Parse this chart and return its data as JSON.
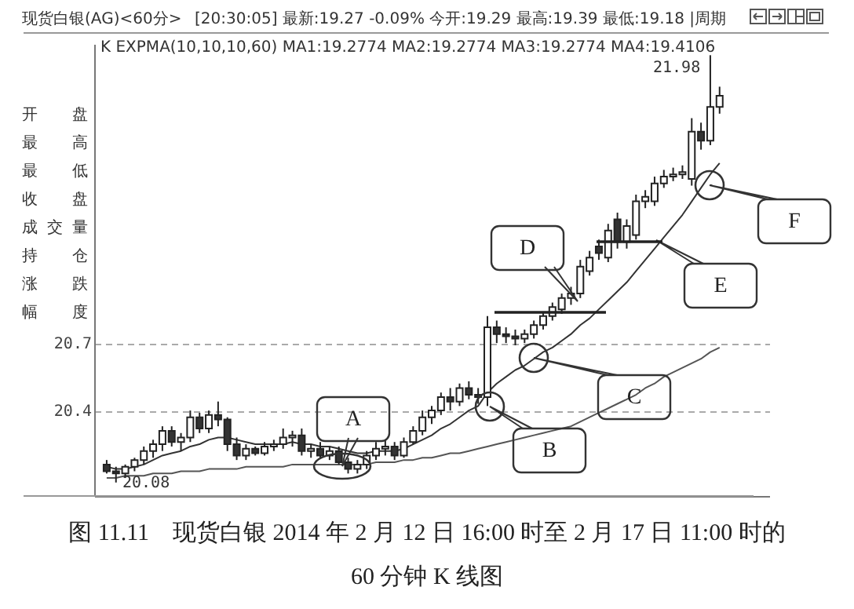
{
  "chart_data": {
    "type": "candlestick",
    "title": "现货白银(AG)<60分>",
    "categories": [
      null,
      null,
      null,
      null,
      null,
      null,
      null,
      null,
      null,
      null,
      null,
      null,
      null,
      null,
      null,
      null,
      null,
      null,
      null,
      null,
      null,
      null,
      null,
      null,
      null,
      null,
      null,
      null,
      null,
      null,
      null,
      null,
      null,
      null,
      null,
      null,
      null,
      null,
      null,
      null,
      null,
      null,
      null,
      null,
      null,
      null,
      null,
      null,
      null,
      null,
      null,
      null,
      null,
      null,
      null,
      null,
      null,
      null,
      null,
      null,
      null,
      null,
      null,
      null,
      null,
      null,
      null
    ],
    "ohlc": [
      [
        20.16,
        20.18,
        20.12,
        20.13
      ],
      [
        20.13,
        20.15,
        20.08,
        20.12
      ],
      [
        20.12,
        20.16,
        20.1,
        20.15
      ],
      [
        20.15,
        20.19,
        20.13,
        20.18
      ],
      [
        20.18,
        20.24,
        20.16,
        20.22
      ],
      [
        20.22,
        20.27,
        20.19,
        20.25
      ],
      [
        20.25,
        20.33,
        20.22,
        20.31
      ],
      [
        20.31,
        20.33,
        20.24,
        20.26
      ],
      [
        20.26,
        20.3,
        20.22,
        20.28
      ],
      [
        20.28,
        20.4,
        20.26,
        20.37
      ],
      [
        20.37,
        20.39,
        20.3,
        20.32
      ],
      [
        20.32,
        20.4,
        20.3,
        20.38
      ],
      [
        20.38,
        20.44,
        20.33,
        20.36
      ],
      [
        20.36,
        20.37,
        20.22,
        20.25
      ],
      [
        20.25,
        20.28,
        20.18,
        20.2
      ],
      [
        20.2,
        20.25,
        20.18,
        20.23
      ],
      [
        20.23,
        20.24,
        20.2,
        20.21
      ],
      [
        20.21,
        20.26,
        20.2,
        20.24
      ],
      [
        20.24,
        20.27,
        20.22,
        20.25
      ],
      [
        20.25,
        20.32,
        20.23,
        20.28
      ],
      [
        20.28,
        20.31,
        20.24,
        20.29
      ],
      [
        20.29,
        20.32,
        20.2,
        20.22
      ],
      [
        20.22,
        20.25,
        20.19,
        20.23
      ],
      [
        20.23,
        20.26,
        20.19,
        20.2
      ],
      [
        20.2,
        20.24,
        20.18,
        20.22
      ],
      [
        20.22,
        20.24,
        20.16,
        20.17
      ],
      [
        20.17,
        20.19,
        20.12,
        20.14
      ],
      [
        20.14,
        20.18,
        20.12,
        20.16
      ],
      [
        20.16,
        20.22,
        20.14,
        20.2
      ],
      [
        20.2,
        20.26,
        20.18,
        20.23
      ],
      [
        20.23,
        20.27,
        20.2,
        20.24
      ],
      [
        20.24,
        20.26,
        20.18,
        20.2
      ],
      [
        20.2,
        20.28,
        20.19,
        20.26
      ],
      [
        20.26,
        20.33,
        20.25,
        20.31
      ],
      [
        20.31,
        20.4,
        20.29,
        20.37
      ],
      [
        20.37,
        20.42,
        20.34,
        20.4
      ],
      [
        20.4,
        20.48,
        20.38,
        20.46
      ],
      [
        20.46,
        20.5,
        20.4,
        20.44
      ],
      [
        20.44,
        20.52,
        20.42,
        20.5
      ],
      [
        20.5,
        20.53,
        20.45,
        20.47
      ],
      [
        20.47,
        20.5,
        20.43,
        20.46
      ],
      [
        20.46,
        20.82,
        20.42,
        20.77
      ],
      [
        20.77,
        20.8,
        20.7,
        20.74
      ],
      [
        20.74,
        20.77,
        20.7,
        20.73
      ],
      [
        20.73,
        20.76,
        20.69,
        20.72
      ],
      [
        20.72,
        20.76,
        20.7,
        20.74
      ],
      [
        20.74,
        20.8,
        20.72,
        20.78
      ],
      [
        20.78,
        20.84,
        20.76,
        20.82
      ],
      [
        20.82,
        20.88,
        20.8,
        20.86
      ],
      [
        20.85,
        20.92,
        20.83,
        20.9
      ],
      [
        20.9,
        20.95,
        20.87,
        20.92
      ],
      [
        20.92,
        21.07,
        20.9,
        21.04
      ],
      [
        21.02,
        21.11,
        21.0,
        21.08
      ],
      [
        21.13,
        21.16,
        21.07,
        21.1
      ],
      [
        21.08,
        21.23,
        21.06,
        21.2
      ],
      [
        21.25,
        21.28,
        21.12,
        21.15
      ],
      [
        21.15,
        21.25,
        21.12,
        21.22
      ],
      [
        21.18,
        21.36,
        21.16,
        21.33
      ],
      [
        21.33,
        21.38,
        21.3,
        21.35
      ],
      [
        21.33,
        21.44,
        21.31,
        21.41
      ],
      [
        21.41,
        21.47,
        21.39,
        21.44
      ],
      [
        21.44,
        21.48,
        21.42,
        21.45
      ],
      [
        21.45,
        21.49,
        21.43,
        21.46
      ],
      [
        21.43,
        21.7,
        21.4,
        21.64
      ],
      [
        21.64,
        21.68,
        21.56,
        21.6
      ],
      [
        21.6,
        21.98,
        21.58,
        21.75
      ],
      [
        21.75,
        21.84,
        21.72,
        21.8
      ]
    ],
    "series": [
      {
        "type": "line",
        "color": "#333333",
        "values": [
          20.15,
          20.14,
          20.14,
          20.15,
          20.16,
          20.18,
          20.2,
          20.21,
          20.22,
          20.24,
          20.25,
          20.27,
          20.28,
          20.28,
          20.27,
          20.26,
          20.25,
          20.25,
          20.25,
          20.25,
          20.26,
          20.25,
          20.25,
          20.24,
          20.24,
          20.23,
          20.22,
          20.21,
          20.21,
          20.22,
          20.22,
          20.22,
          20.23,
          20.25,
          20.27,
          20.29,
          20.32,
          20.34,
          20.37,
          20.4,
          20.42,
          20.48,
          20.52,
          20.55,
          20.58,
          20.6,
          20.63,
          20.66,
          20.68,
          20.71,
          20.74,
          20.78,
          20.81,
          20.85,
          20.89,
          20.93,
          20.97,
          21.02,
          21.07,
          21.12,
          21.17,
          21.22,
          21.27,
          21.33,
          21.39,
          21.45,
          21.5
        ]
      },
      {
        "type": "line",
        "color": "#555555",
        "values": [
          20.1,
          20.1,
          20.11,
          20.11,
          20.11,
          20.12,
          20.12,
          20.12,
          20.13,
          20.13,
          20.13,
          20.14,
          20.14,
          20.14,
          20.14,
          20.15,
          20.15,
          20.15,
          20.15,
          20.15,
          20.16,
          20.16,
          20.16,
          20.16,
          20.16,
          20.16,
          20.16,
          20.16,
          20.16,
          20.17,
          20.17,
          20.17,
          20.18,
          20.18,
          20.19,
          20.19,
          20.2,
          20.21,
          20.21,
          20.22,
          20.23,
          20.24,
          20.25,
          20.26,
          20.27,
          20.28,
          20.29,
          20.3,
          20.31,
          20.32,
          20.33,
          20.35,
          20.37,
          20.39,
          20.41,
          20.43,
          20.45,
          20.47,
          20.5,
          20.52,
          20.55,
          20.57,
          20.59,
          20.61,
          20.63,
          20.66,
          20.68
        ]
      }
    ],
    "ylim": [
      20.02,
      22.03
    ],
    "yticks": [
      20.4,
      20.7
    ],
    "grid": "y",
    "annotations": [
      "[20:30:05] 最新:19.27 -0.09% 今开:19.29 最高:19.39 最低:19.18 |周期",
      "K  EXPMA(10,10,10,60) MA1:19.2774 MA2:19.2774 MA3:19.2774 MA4:19.4106",
      "21.98",
      {
        "text": "20.08",
        "y": 20.08
      },
      "开盘",
      "最高",
      "最低",
      "收盘",
      "成交量",
      "持仓",
      "涨跌",
      "幅度",
      "A",
      "B",
      "C",
      "D",
      "E",
      "F",
      "图 11.11　现货白银 2014 年 2 月 12 日 16:00 时至 2 月 17 日 11:00 时的",
      "60 分钟 K 线图"
    ]
  }
}
